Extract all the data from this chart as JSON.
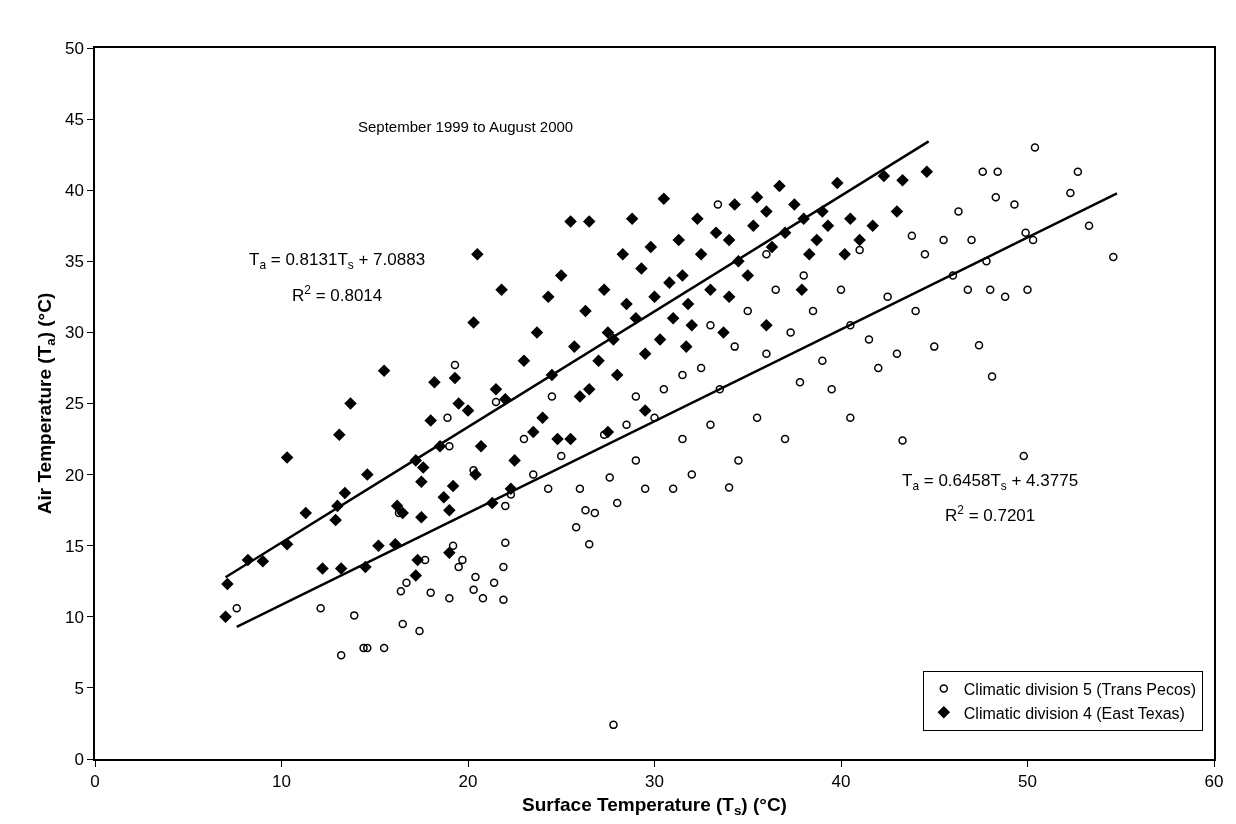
{
  "chart_data": {
    "type": "scatter",
    "xlabel": "Surface Temperature (T$_{s}$) (°C)",
    "ylabel": "Air Temperature (T$_{a}$) (°C)",
    "xlim": [
      0,
      60
    ],
    "xticks": [
      0,
      10,
      20,
      30,
      40,
      50,
      60
    ],
    "ylim": [
      0,
      50
    ],
    "yticks": [
      0,
      5,
      10,
      15,
      20,
      25,
      30,
      35,
      40,
      45,
      50
    ],
    "grid": false,
    "legend": "bottom right",
    "annotations": [
      "September 1999 to August 2000",
      "T$_{a}$ = 0.8131T$_{s}$ + 7.0883",
      "R$^{2}$ = 0.8014",
      "T$_{a}$ = 0.6458T$_{s}$ + 4.3775",
      "R$^{2}$ = 0.7201"
    ],
    "series": [
      {
        "name": "Climatic division 5 (Trans Pecos)",
        "color": "#000000",
        "marker": "circle",
        "x": [
          7.6,
          12.1,
          13.2,
          13.9,
          14.4,
          14.6,
          15.5,
          16.4,
          16.7,
          16.5,
          17.4,
          17.7,
          18.0,
          19.0,
          19.2,
          19.5,
          19.7,
          20.3,
          20.4,
          20.8,
          21.4,
          21.9,
          21.9,
          22.0,
          16.3,
          18.9,
          19.3,
          19.0,
          20.3,
          21.5,
          22.3,
          22.0,
          23.5,
          24.3,
          25.0,
          25.8,
          26.3,
          26.5,
          26.8,
          27.3,
          27.6,
          27.8,
          28.0,
          28.5,
          29.0,
          29.5,
          30.0,
          30.5,
          31.0,
          31.5,
          32.0,
          32.5,
          33.0,
          33.4,
          33.5,
          34.0,
          34.3,
          34.5,
          35.0,
          35.5,
          36.0,
          36.5,
          37.0,
          37.3,
          37.8,
          38.5,
          39.0,
          39.5,
          40.0,
          40.5,
          41.0,
          41.5,
          42.0,
          42.5,
          43.0,
          43.3,
          43.8,
          44.0,
          44.5,
          45.0,
          45.5,
          46.0,
          46.3,
          46.8,
          47.0,
          47.4,
          47.8,
          48.0,
          48.1,
          48.3,
          48.4,
          48.8,
          49.3,
          49.8,
          49.9,
          50.0,
          50.4,
          50.3,
          52.3,
          52.7,
          53.3,
          54.6,
          47.6,
          36.0,
          38.0,
          40.5,
          29.0,
          31.5,
          33.0,
          23.0,
          24.5,
          26.0
        ],
        "values": [
          10.6,
          10.6,
          7.3,
          10.1,
          7.8,
          7.8,
          7.8,
          11.8,
          12.4,
          9.5,
          9.0,
          14.0,
          11.7,
          11.3,
          15.0,
          13.5,
          14.0,
          11.9,
          12.8,
          11.3,
          12.4,
          11.2,
          13.5,
          15.2,
          17.3,
          24.0,
          27.7,
          22.0,
          20.3,
          25.1,
          18.6,
          17.8,
          20.0,
          19.0,
          21.3,
          16.3,
          17.5,
          15.1,
          17.3,
          22.8,
          19.8,
          2.4,
          18.0,
          23.5,
          21.0,
          19.0,
          24.0,
          26.0,
          19.0,
          22.5,
          20.0,
          27.5,
          23.5,
          39.0,
          26.0,
          19.1,
          29.0,
          21.0,
          31.5,
          24.0,
          28.5,
          33.0,
          22.5,
          30.0,
          26.5,
          31.5,
          28.0,
          26.0,
          33.0,
          24.0,
          35.8,
          29.5,
          27.5,
          32.5,
          28.5,
          22.4,
          36.8,
          31.5,
          35.5,
          29.0,
          36.5,
          34.0,
          38.5,
          33.0,
          36.5,
          29.1,
          35.0,
          33.0,
          26.9,
          39.5,
          41.3,
          32.5,
          39.0,
          21.3,
          37.0,
          33.0,
          43.0,
          36.5,
          39.8,
          41.3,
          37.5,
          35.3,
          41.3,
          35.5,
          34.0,
          30.5,
          25.5,
          27.0,
          30.5,
          22.5,
          25.5,
          19.0
        ]
      },
      {
        "name": "Climatic division 4 (East Texas)",
        "color": "#000000",
        "marker": "diamond",
        "x": [
          7.0,
          7.1,
          8.2,
          9.0,
          10.3,
          10.3,
          11.3,
          12.2,
          12.9,
          13.0,
          13.1,
          13.2,
          13.4,
          13.7,
          14.5,
          14.6,
          15.2,
          15.5,
          16.1,
          16.2,
          16.5,
          17.2,
          17.2,
          17.3,
          17.5,
          17.5,
          17.6,
          18.0,
          18.2,
          18.5,
          18.7,
          19.0,
          19.0,
          19.2,
          19.3,
          19.5,
          20.0,
          20.3,
          20.4,
          20.5,
          20.7,
          21.3,
          21.5,
          21.8,
          22.0,
          22.3,
          22.5,
          23.0,
          23.5,
          23.7,
          24.0,
          24.3,
          24.5,
          24.8,
          25.0,
          25.5,
          25.7,
          26.0,
          26.3,
          26.5,
          27.0,
          27.3,
          27.5,
          27.8,
          28.0,
          28.3,
          28.5,
          28.8,
          29.0,
          29.3,
          29.5,
          29.8,
          30.0,
          30.3,
          30.5,
          30.8,
          31.0,
          31.3,
          31.5,
          31.8,
          32.0,
          32.3,
          32.5,
          33.0,
          33.3,
          33.7,
          34.0,
          34.3,
          34.5,
          35.0,
          35.3,
          35.5,
          36.0,
          36.3,
          36.7,
          37.0,
          37.5,
          38.0,
          38.3,
          38.7,
          39.0,
          39.3,
          39.8,
          40.2,
          40.5,
          41.0,
          41.7,
          42.3,
          43.0,
          43.3,
          44.6,
          37.9,
          36.0,
          34.0,
          31.7,
          29.5,
          27.5,
          25.5,
          26.5
        ],
        "values": [
          10.0,
          12.3,
          14.0,
          13.9,
          15.1,
          21.2,
          17.3,
          13.4,
          16.8,
          17.8,
          22.8,
          13.4,
          18.7,
          25.0,
          13.5,
          20.0,
          15.0,
          27.3,
          15.1,
          17.8,
          17.3,
          21.0,
          12.9,
          14.0,
          17.0,
          19.5,
          20.5,
          23.8,
          26.5,
          22.0,
          18.4,
          17.5,
          14.5,
          19.2,
          26.8,
          25.0,
          24.5,
          30.7,
          20.0,
          35.5,
          22.0,
          18.0,
          26.0,
          33.0,
          25.3,
          19.0,
          21.0,
          28.0,
          23.0,
          30.0,
          24.0,
          32.5,
          27.0,
          22.5,
          34.0,
          37.8,
          29.0,
          25.5,
          31.5,
          37.8,
          28.0,
          33.0,
          30.0,
          29.5,
          27.0,
          35.5,
          32.0,
          38.0,
          31.0,
          34.5,
          28.5,
          36.0,
          32.5,
          29.5,
          39.4,
          33.5,
          31.0,
          36.5,
          34.0,
          32.0,
          30.5,
          38.0,
          35.5,
          33.0,
          37.0,
          30.0,
          36.5,
          39.0,
          35.0,
          34.0,
          37.5,
          39.5,
          38.5,
          36.0,
          40.3,
          37.0,
          39.0,
          38.0,
          35.5,
          36.5,
          38.5,
          37.5,
          40.5,
          35.5,
          38.0,
          36.5,
          37.5,
          41.0,
          38.5,
          40.7,
          41.3,
          33.0,
          30.5,
          32.5,
          29.0,
          24.5,
          23.0,
          22.5,
          26.0
        ]
      },
      {
        "type": "line",
        "color": "#000000",
        "line_style": "solid",
        "x": [
          7.0,
          44.7
        ],
        "values": [
          12.78,
          43.43
        ]
      },
      {
        "type": "line",
        "color": "#000000",
        "line_style": "solid",
        "x": [
          7.6,
          54.8
        ],
        "values": [
          9.29,
          39.77
        ]
      }
    ]
  }
}
